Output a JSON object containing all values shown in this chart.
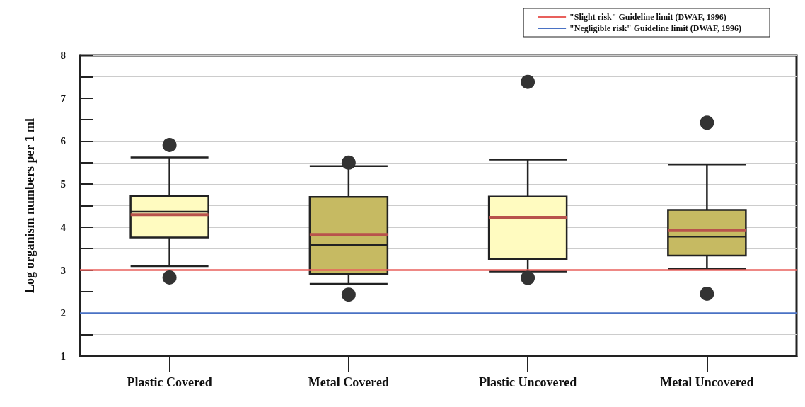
{
  "chart_data": {
    "type": "box",
    "ylabel": "Log organism numbers per 1 ml",
    "categories": [
      "Plastic Covered",
      "Metal Covered",
      "Plastic Uncovered",
      "Metal Uncovered"
    ],
    "colors": [
      "#fffbc0",
      "#c6ba62",
      "#fffbc0",
      "#c6ba62"
    ],
    "boxes": [
      {
        "low": 3.09,
        "q1": 3.76,
        "median": 4.36,
        "q3": 4.72,
        "high": 5.62,
        "mean": 4.29,
        "outliers": [
          5.91,
          2.83
        ]
      },
      {
        "low": 2.68,
        "q1": 2.91,
        "median": 3.58,
        "q3": 4.7,
        "high": 5.42,
        "mean": 3.83,
        "outliers": [
          5.5,
          2.43
        ]
      },
      {
        "low": 2.97,
        "q1": 3.26,
        "median": 4.2,
        "q3": 4.71,
        "high": 5.57,
        "mean": 4.23,
        "outliers": [
          7.38,
          2.82
        ]
      },
      {
        "low": 3.03,
        "q1": 3.34,
        "median": 3.78,
        "q3": 4.4,
        "high": 5.46,
        "mean": 3.92,
        "outliers": [
          6.43,
          2.45
        ]
      }
    ],
    "ylim": [
      1,
      8
    ],
    "yticks": [
      1,
      {
        "value": 1.5,
        "label": null
      },
      2,
      {
        "value": 2.5,
        "label": null
      },
      3,
      {
        "value": 3.5,
        "label": null
      },
      4,
      {
        "value": 4.5,
        "label": null
      },
      5,
      {
        "value": 5.5,
        "label": null
      },
      6,
      {
        "value": 6.5,
        "label": null
      },
      7,
      {
        "value": 7.5,
        "label": null
      },
      8
    ],
    "ref_lines": [
      {
        "axis": "y",
        "value": 3,
        "label": "\"Slight risk\" Guideline limit (DWAF, 1996)",
        "color": "#e8605c"
      },
      {
        "axis": "y",
        "value": 2,
        "label": "\"Negligible risk\" Guideline limit (DWAF, 1996)",
        "color": "#4a72c4"
      }
    ],
    "grid": "y",
    "legend": "top right"
  }
}
